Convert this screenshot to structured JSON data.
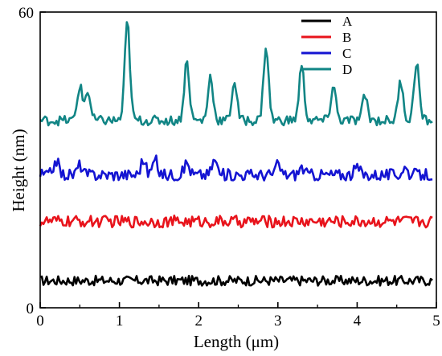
{
  "chart_data": {
    "type": "line",
    "title": "",
    "xlabel": "Length (μm)",
    "ylabel": "Height (nm)",
    "xlim": [
      0,
      5
    ],
    "ylim": [
      0,
      60
    ],
    "x_ticks": [
      "0",
      "1",
      "2",
      "3",
      "4",
      "5"
    ],
    "y_ticks": [
      "0",
      "60"
    ],
    "grid": false,
    "legend_position": "top-right",
    "series": [
      {
        "name": "A",
        "color": "#000000",
        "base": 5.5,
        "noise": 1.0,
        "spikes": []
      },
      {
        "name": "B",
        "color": "#e8141c",
        "base": 17.5,
        "noise": 1.2,
        "spikes": []
      },
      {
        "name": "C",
        "color": "#1414d2",
        "base": 27.0,
        "noise": 1.2,
        "spikes": [
          [
            0.2,
            3
          ],
          [
            0.5,
            2
          ],
          [
            1.3,
            3
          ],
          [
            1.45,
            3
          ],
          [
            1.85,
            2.5
          ],
          [
            2.2,
            3
          ],
          [
            3.0,
            2
          ],
          [
            3.3,
            1.5
          ],
          [
            4.0,
            1.5
          ],
          [
            4.6,
            1.5
          ]
        ]
      },
      {
        "name": "D",
        "color": "#118585",
        "base": 38.0,
        "noise": 1.0,
        "spikes": [
          [
            0.5,
            7
          ],
          [
            0.6,
            6
          ],
          [
            1.1,
            20
          ],
          [
            1.85,
            12
          ],
          [
            2.15,
            9
          ],
          [
            2.45,
            8
          ],
          [
            2.85,
            15
          ],
          [
            3.3,
            11
          ],
          [
            3.7,
            7
          ],
          [
            4.1,
            5
          ],
          [
            4.55,
            8
          ],
          [
            4.75,
            12
          ]
        ]
      }
    ]
  }
}
